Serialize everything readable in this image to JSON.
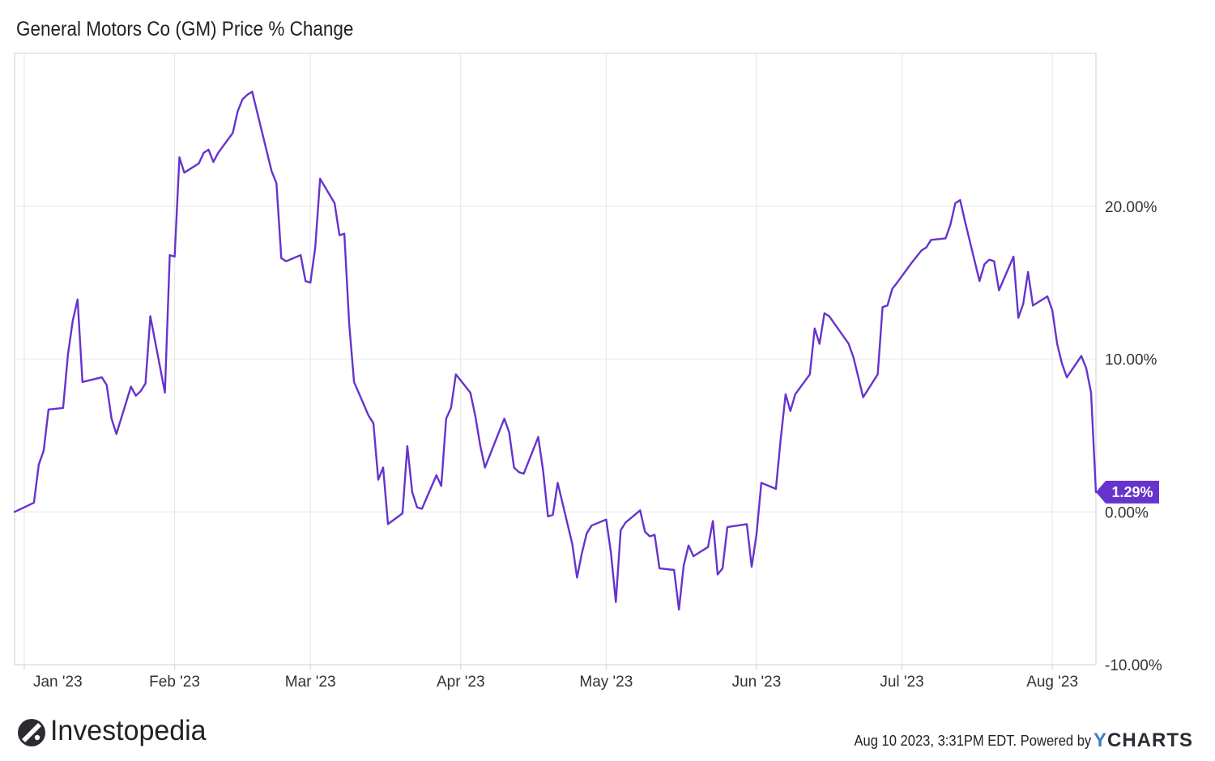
{
  "chart_data": {
    "type": "line",
    "title": "General Motors Co (GM) Price % Change",
    "xlabel": "",
    "ylabel": "",
    "x_ticks": [
      {
        "label": "Jan '23",
        "date": "2023-01-01"
      },
      {
        "label": "Feb '23",
        "date": "2023-02-01"
      },
      {
        "label": "Mar '23",
        "date": "2023-03-01"
      },
      {
        "label": "Apr '23",
        "date": "2023-04-01"
      },
      {
        "label": "May '23",
        "date": "2023-05-01"
      },
      {
        "label": "Jun '23",
        "date": "2023-06-01"
      },
      {
        "label": "Jul '23",
        "date": "2023-07-01"
      },
      {
        "label": "Aug '23",
        "date": "2023-08-01"
      }
    ],
    "y_ticks": [
      {
        "label": "20.00%",
        "value": 20
      },
      {
        "label": "10.00%",
        "value": 10
      },
      {
        "label": "0.00%",
        "value": 0
      },
      {
        "label": "-10.00%",
        "value": -10
      }
    ],
    "xlim": [
      "2022-12-30",
      "2023-08-10"
    ],
    "ylim": [
      -10,
      30
    ],
    "grid": true,
    "y_axis_side": "right",
    "line_color": "#6633cc",
    "series": [
      {
        "values": [
          [
            "2022-12-30",
            0.0
          ],
          [
            "2023-01-03",
            0.6
          ],
          [
            "2023-01-04",
            3.1
          ],
          [
            "2023-01-05",
            4.0
          ],
          [
            "2023-01-06",
            6.7
          ],
          [
            "2023-01-09",
            6.8
          ],
          [
            "2023-01-10",
            10.3
          ],
          [
            "2023-01-11",
            12.5
          ],
          [
            "2023-01-12",
            13.9
          ],
          [
            "2023-01-13",
            8.5
          ],
          [
            "2023-01-17",
            8.8
          ],
          [
            "2023-01-18",
            8.3
          ],
          [
            "2023-01-19",
            6.1
          ],
          [
            "2023-01-20",
            5.1
          ],
          [
            "2023-01-23",
            8.2
          ],
          [
            "2023-01-24",
            7.6
          ],
          [
            "2023-01-25",
            7.9
          ],
          [
            "2023-01-26",
            8.4
          ],
          [
            "2023-01-27",
            12.8
          ],
          [
            "2023-01-30",
            7.8
          ],
          [
            "2023-01-31",
            16.8
          ],
          [
            "2023-02-01",
            16.7
          ],
          [
            "2023-02-02",
            23.2
          ],
          [
            "2023-02-03",
            22.2
          ],
          [
            "2023-02-06",
            22.8
          ],
          [
            "2023-02-07",
            23.5
          ],
          [
            "2023-02-08",
            23.7
          ],
          [
            "2023-02-09",
            22.9
          ],
          [
            "2023-02-10",
            23.5
          ],
          [
            "2023-02-13",
            24.8
          ],
          [
            "2023-02-14",
            26.2
          ],
          [
            "2023-02-15",
            27.0
          ],
          [
            "2023-02-16",
            27.3
          ],
          [
            "2023-02-17",
            27.5
          ],
          [
            "2023-02-21",
            22.3
          ],
          [
            "2023-02-22",
            21.5
          ],
          [
            "2023-02-23",
            16.6
          ],
          [
            "2023-02-24",
            16.4
          ],
          [
            "2023-02-27",
            16.8
          ],
          [
            "2023-02-28",
            15.1
          ],
          [
            "2023-03-01",
            15.0
          ],
          [
            "2023-03-02",
            17.3
          ],
          [
            "2023-03-03",
            21.8
          ],
          [
            "2023-03-06",
            20.2
          ],
          [
            "2023-03-07",
            18.1
          ],
          [
            "2023-03-08",
            18.2
          ],
          [
            "2023-03-09",
            12.3
          ],
          [
            "2023-03-10",
            8.5
          ],
          [
            "2023-03-13",
            6.3
          ],
          [
            "2023-03-14",
            5.8
          ],
          [
            "2023-03-15",
            2.1
          ],
          [
            "2023-03-16",
            2.9
          ],
          [
            "2023-03-17",
            -0.8
          ],
          [
            "2023-03-20",
            -0.1
          ],
          [
            "2023-03-21",
            4.3
          ],
          [
            "2023-03-22",
            1.3
          ],
          [
            "2023-03-23",
            0.3
          ],
          [
            "2023-03-24",
            0.2
          ],
          [
            "2023-03-27",
            2.4
          ],
          [
            "2023-03-28",
            1.7
          ],
          [
            "2023-03-29",
            6.1
          ],
          [
            "2023-03-30",
            6.8
          ],
          [
            "2023-03-31",
            9.0
          ],
          [
            "2023-04-03",
            7.8
          ],
          [
            "2023-04-04",
            6.3
          ],
          [
            "2023-04-05",
            4.4
          ],
          [
            "2023-04-06",
            2.9
          ],
          [
            "2023-04-10",
            6.1
          ],
          [
            "2023-04-11",
            5.2
          ],
          [
            "2023-04-12",
            2.9
          ],
          [
            "2023-04-13",
            2.6
          ],
          [
            "2023-04-14",
            2.5
          ],
          [
            "2023-04-17",
            4.9
          ],
          [
            "2023-04-18",
            2.7
          ],
          [
            "2023-04-19",
            -0.3
          ],
          [
            "2023-04-20",
            -0.2
          ],
          [
            "2023-04-21",
            1.9
          ],
          [
            "2023-04-24",
            -2.1
          ],
          [
            "2023-04-25",
            -4.3
          ],
          [
            "2023-04-26",
            -2.7
          ],
          [
            "2023-04-27",
            -1.4
          ],
          [
            "2023-04-28",
            -0.9
          ],
          [
            "2023-05-01",
            -0.5
          ],
          [
            "2023-05-02",
            -2.7
          ],
          [
            "2023-05-03",
            -5.9
          ],
          [
            "2023-05-04",
            -1.2
          ],
          [
            "2023-05-05",
            -0.7
          ],
          [
            "2023-05-08",
            0.1
          ],
          [
            "2023-05-09",
            -1.3
          ],
          [
            "2023-05-10",
            -1.6
          ],
          [
            "2023-05-11",
            -1.5
          ],
          [
            "2023-05-12",
            -3.7
          ],
          [
            "2023-05-15",
            -3.8
          ],
          [
            "2023-05-16",
            -6.4
          ],
          [
            "2023-05-17",
            -3.5
          ],
          [
            "2023-05-18",
            -2.2
          ],
          [
            "2023-05-19",
            -2.9
          ],
          [
            "2023-05-22",
            -2.3
          ],
          [
            "2023-05-23",
            -0.6
          ],
          [
            "2023-05-24",
            -4.1
          ],
          [
            "2023-05-25",
            -3.7
          ],
          [
            "2023-05-26",
            -1.0
          ],
          [
            "2023-05-30",
            -0.8
          ],
          [
            "2023-05-31",
            -3.6
          ],
          [
            "2023-06-01",
            -1.5
          ],
          [
            "2023-06-02",
            1.9
          ],
          [
            "2023-06-05",
            1.5
          ],
          [
            "2023-06-06",
            4.8
          ],
          [
            "2023-06-07",
            7.7
          ],
          [
            "2023-06-08",
            6.6
          ],
          [
            "2023-06-09",
            7.7
          ],
          [
            "2023-06-12",
            9.0
          ],
          [
            "2023-06-13",
            12.0
          ],
          [
            "2023-06-14",
            11.0
          ],
          [
            "2023-06-15",
            13.0
          ],
          [
            "2023-06-16",
            12.8
          ],
          [
            "2023-06-20",
            11.0
          ],
          [
            "2023-06-21",
            10.1
          ],
          [
            "2023-06-22",
            8.8
          ],
          [
            "2023-06-23",
            7.5
          ],
          [
            "2023-06-26",
            9.0
          ],
          [
            "2023-06-27",
            13.4
          ],
          [
            "2023-06-28",
            13.5
          ],
          [
            "2023-06-29",
            14.6
          ],
          [
            "2023-06-30",
            15.0
          ],
          [
            "2023-07-03",
            16.3
          ],
          [
            "2023-07-05",
            17.1
          ],
          [
            "2023-07-06",
            17.3
          ],
          [
            "2023-07-07",
            17.8
          ],
          [
            "2023-07-10",
            17.9
          ],
          [
            "2023-07-11",
            18.8
          ],
          [
            "2023-07-12",
            20.2
          ],
          [
            "2023-07-13",
            20.4
          ],
          [
            "2023-07-14",
            19.0
          ],
          [
            "2023-07-17",
            15.1
          ],
          [
            "2023-07-18",
            16.2
          ],
          [
            "2023-07-19",
            16.5
          ],
          [
            "2023-07-20",
            16.4
          ],
          [
            "2023-07-21",
            14.5
          ],
          [
            "2023-07-24",
            16.7
          ],
          [
            "2023-07-25",
            12.7
          ],
          [
            "2023-07-26",
            13.6
          ],
          [
            "2023-07-27",
            15.7
          ],
          [
            "2023-07-28",
            13.5
          ],
          [
            "2023-07-31",
            14.1
          ],
          [
            "2023-08-01",
            13.2
          ],
          [
            "2023-08-02",
            11.0
          ],
          [
            "2023-08-03",
            9.7
          ],
          [
            "2023-08-04",
            8.8
          ],
          [
            "2023-08-07",
            10.2
          ],
          [
            "2023-08-08",
            9.4
          ],
          [
            "2023-08-09",
            7.8
          ],
          [
            "2023-08-10",
            1.29
          ]
        ]
      }
    ],
    "last_value_label": "1.29%"
  },
  "footer": {
    "timestamp": "Aug 10 2023, 3:31PM EDT.",
    "powered_by": "Powered by",
    "ycharts_y": "Y",
    "ycharts_rest": "CHARTS"
  },
  "brand": {
    "name": "Investopedia",
    "mark_icon": "investopedia-i-logo-icon"
  }
}
